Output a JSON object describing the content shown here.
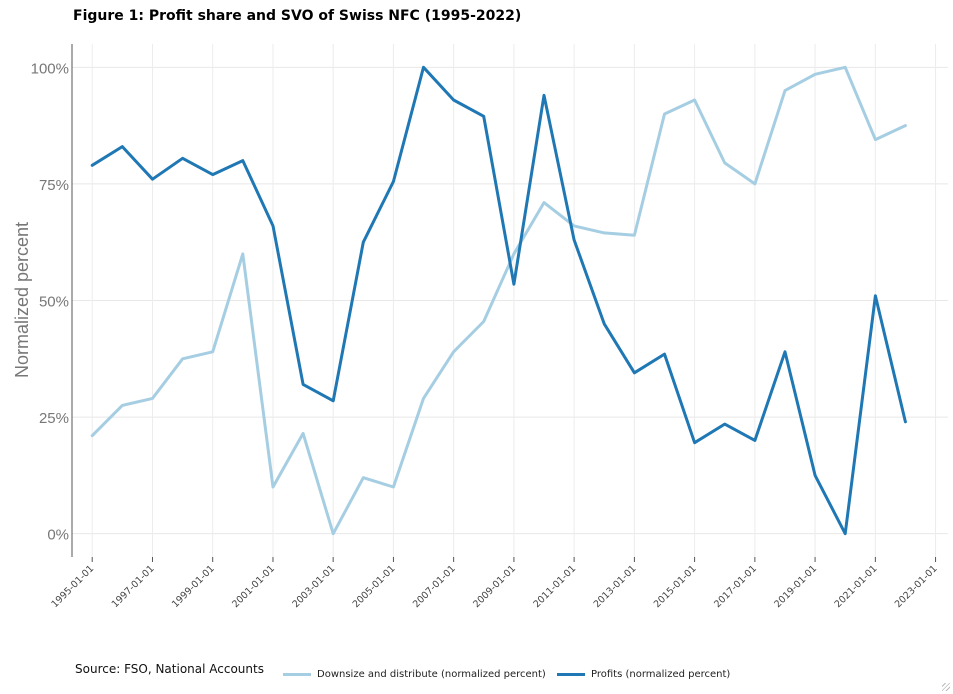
{
  "title": "Figure 1: Profit share and SVO of Swiss NFC (1995-2022)",
  "source": "Source: FSO, National Accounts",
  "chart_data": {
    "type": "line",
    "ylabel": "Normalized percent",
    "xlabel": "",
    "yticks": [
      "0%",
      "25%",
      "50%",
      "75%",
      "100%"
    ],
    "ytick_values": [
      0,
      25,
      50,
      75,
      100
    ],
    "ylim": [
      -5,
      105
    ],
    "xticks": [
      "1995-01-01",
      "1997-01-01",
      "1999-01-01",
      "2001-01-01",
      "2003-01-01",
      "2005-01-01",
      "2007-01-01",
      "2009-01-01",
      "2011-01-01",
      "2013-01-01",
      "2015-01-01",
      "2017-01-01",
      "2019-01-01",
      "2021-01-01",
      "2023-01-01"
    ],
    "xlim": [
      "1994-05-01",
      "2023-06-01"
    ],
    "grid": true,
    "legend_position": "bottom",
    "x": [
      "1995-01-01",
      "1996-01-01",
      "1997-01-01",
      "1998-01-01",
      "1999-01-01",
      "2000-01-01",
      "2001-01-01",
      "2002-01-01",
      "2003-01-01",
      "2004-01-01",
      "2005-01-01",
      "2006-01-01",
      "2007-01-01",
      "2008-01-01",
      "2009-01-01",
      "2010-01-01",
      "2011-01-01",
      "2012-01-01",
      "2013-01-01",
      "2014-01-01",
      "2015-01-01",
      "2016-01-01",
      "2017-01-01",
      "2018-01-01",
      "2019-01-01",
      "2020-01-01",
      "2021-01-01",
      "2022-01-01"
    ],
    "series": [
      {
        "name": "Downsize and distribute (normalized percent)",
        "color": "#a6cee3",
        "values": [
          21,
          27.5,
          29,
          37.5,
          39,
          60,
          10,
          21.5,
          0,
          12,
          10,
          29,
          39,
          45.5,
          60,
          71,
          66,
          64.5,
          64,
          90,
          93,
          79.5,
          75,
          95,
          98.5,
          100,
          84.5,
          87.5
        ]
      },
      {
        "name": "Profits (normalized percent)",
        "color": "#1f78b4",
        "values": [
          79,
          83,
          76,
          80.5,
          77,
          80,
          66,
          32,
          28.5,
          62.5,
          75.5,
          100,
          93,
          89.5,
          53.5,
          94,
          63,
          45,
          34.5,
          38.5,
          19.5,
          23.5,
          20,
          39,
          12.5,
          0,
          51,
          24
        ]
      }
    ]
  }
}
